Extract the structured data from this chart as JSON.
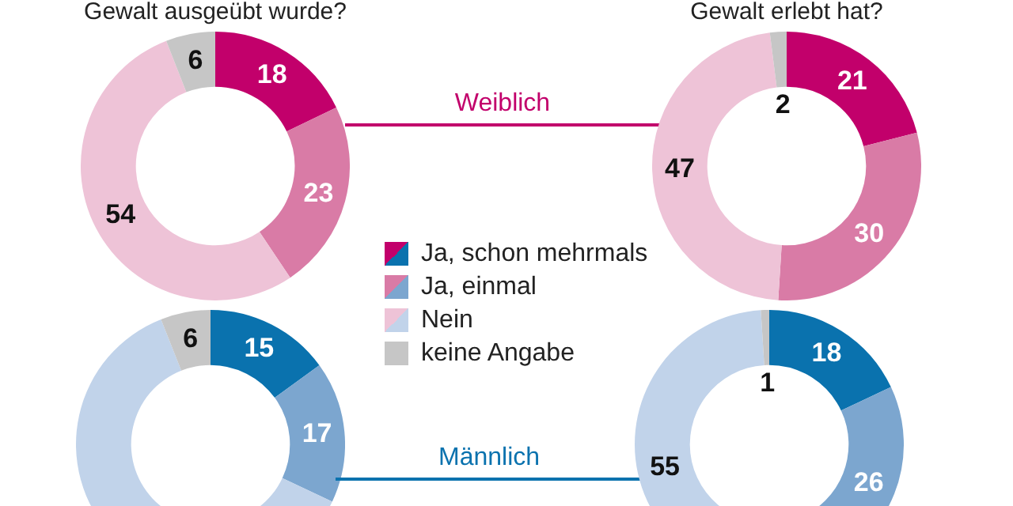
{
  "chart_data": [
    {
      "type": "donut",
      "title": "Gewalt ausgeübt wurde?",
      "categories": [
        "Ja, schon mehrmals",
        "Ja, einmal",
        "Nein",
        "keine Angabe"
      ],
      "values": [
        18,
        23,
        54,
        6
      ],
      "colors": [
        "#c2006b",
        "#d97ba6",
        "#eec3d7",
        "#c6c6c6"
      ],
      "data_labels": true,
      "legend": "bottom right",
      "annotations": [
        "Weiblich"
      ]
    },
    {
      "type": "donut",
      "title": "Gewalt erlebt hat?",
      "categories": [
        null,
        null,
        null,
        null
      ],
      "values": [
        21,
        30,
        47,
        2
      ],
      "colors": [
        "#c2006b",
        "#d97ba6",
        "#eec3d7",
        "#c6c6c6"
      ],
      "data_labels": true
    },
    {
      "type": "donut",
      "categories": [
        null,
        null,
        null,
        null
      ],
      "values": [
        15,
        17,
        62,
        6
      ],
      "value_labels": [
        "15",
        "17",
        null,
        "6"
      ],
      "colors": [
        "#0a72ae",
        "#7ca6cf",
        "#c1d3ea",
        "#c6c6c6"
      ],
      "annotations": [
        "Männlich"
      ]
    },
    {
      "type": "donut",
      "categories": [
        null,
        null,
        null,
        null
      ],
      "values": [
        18,
        26,
        55,
        1
      ],
      "colors": [
        "#0a72ae",
        "#7ca6cf",
        "#c1d3ea",
        "#c6c6c6"
      ],
      "data_labels": true
    }
  ]
}
